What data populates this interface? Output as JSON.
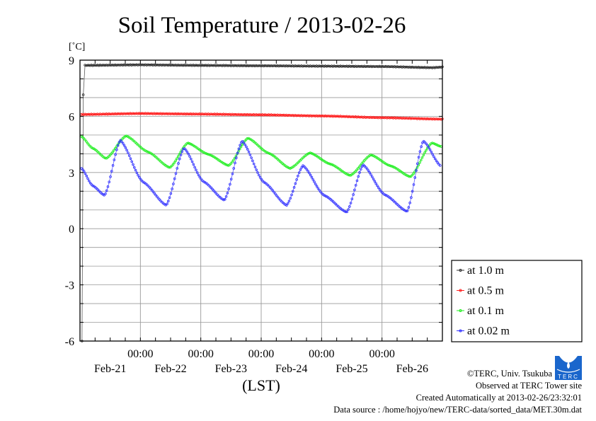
{
  "chart_data": {
    "type": "line",
    "title": "Soil Temperature / 2013-02-26",
    "ylabel": "[˚C]",
    "xlabel": "(LST)",
    "ylim": [
      -6,
      9
    ],
    "yticks": [
      9,
      6,
      3,
      0,
      -3,
      -6
    ],
    "y_grid_step": 1,
    "xlim_hours": [
      0,
      144
    ],
    "x_unit": "hours since 2013-02-21 00:00 (axis start)",
    "x_major_ticks": [
      {
        "hour": 24,
        "label": "00:00"
      },
      {
        "hour": 48,
        "label": "00:00"
      },
      {
        "hour": 72,
        "label": "00:00"
      },
      {
        "hour": 96,
        "label": "00:00"
      },
      {
        "hour": 120,
        "label": "00:00"
      }
    ],
    "x_minor_step_hours": 6,
    "date_labels": [
      {
        "hour": 12,
        "label": "Feb-21"
      },
      {
        "hour": 36,
        "label": "Feb-22"
      },
      {
        "hour": 60,
        "label": "Feb-23"
      },
      {
        "hour": 84,
        "label": "Feb-24"
      },
      {
        "hour": 108,
        "label": "Feb-25"
      },
      {
        "hour": 132,
        "label": "Feb-26"
      }
    ],
    "grid": true,
    "legend_position": "right-bottom-outside",
    "series": [
      {
        "name": "at 1.0 m",
        "color": "#333333",
        "points": [
          [
            0.8,
            -6
          ],
          [
            1.3,
            7.15
          ],
          [
            2,
            8.72
          ],
          [
            24,
            8.75
          ],
          [
            48,
            8.72
          ],
          [
            72,
            8.7
          ],
          [
            96,
            8.68
          ],
          [
            120,
            8.66
          ],
          [
            140,
            8.6
          ],
          [
            144,
            8.63
          ]
        ]
      },
      {
        "name": "at 0.5 m",
        "color": "#ff2222",
        "points": [
          [
            0.5,
            6.1
          ],
          [
            24,
            6.15
          ],
          [
            48,
            6.12
          ],
          [
            72,
            6.08
          ],
          [
            96,
            6.02
          ],
          [
            120,
            5.93
          ],
          [
            144,
            5.85
          ]
        ]
      },
      {
        "name": "at 0.1 m",
        "color": "#22ee22",
        "points": [
          [
            0.5,
            4.93
          ],
          [
            5,
            4.3
          ],
          [
            10.4,
            3.75
          ],
          [
            18.3,
            4.96
          ],
          [
            27,
            4.1
          ],
          [
            35.7,
            3.26
          ],
          [
            42.8,
            4.58
          ],
          [
            51,
            3.97
          ],
          [
            59.1,
            3.37
          ],
          [
            66.7,
            4.84
          ],
          [
            75,
            4.03
          ],
          [
            83.5,
            3.22
          ],
          [
            91.4,
            4.05
          ],
          [
            99.5,
            3.45
          ],
          [
            107.4,
            2.84
          ],
          [
            115.6,
            3.94
          ],
          [
            123.5,
            3.35
          ],
          [
            131.3,
            2.77
          ],
          [
            139.8,
            4.58
          ],
          [
            143.5,
            4.39
          ]
        ]
      },
      {
        "name": "at 0.02 m",
        "color": "#3333ff",
        "points": [
          [
            0.6,
            3.22
          ],
          [
            5,
            2.3
          ],
          [
            9.8,
            1.78
          ],
          [
            16,
            4.73
          ],
          [
            25,
            2.5
          ],
          [
            34.3,
            1.25
          ],
          [
            41.3,
            4.31
          ],
          [
            49,
            2.52
          ],
          [
            57.4,
            1.52
          ],
          [
            64.4,
            4.69
          ],
          [
            73,
            2.49
          ],
          [
            82.1,
            1.25
          ],
          [
            88.6,
            3.37
          ],
          [
            97,
            1.78
          ],
          [
            106,
            0.88
          ],
          [
            112.5,
            3.41
          ],
          [
            121,
            1.82
          ],
          [
            130,
            0.92
          ],
          [
            136.4,
            4.69
          ],
          [
            143.5,
            3.33
          ]
        ]
      }
    ]
  },
  "footer": {
    "copyright": "©TERC, Univ. Tsukuba",
    "observed": "Observed at TERC Tower site",
    "created": "Created Automatically at 2013-02-26/23:32:01",
    "source": "Data source : /home/hojyo/new/TERC-data/sorted_data/MET.30m.dat",
    "logo_text": "TERC"
  }
}
